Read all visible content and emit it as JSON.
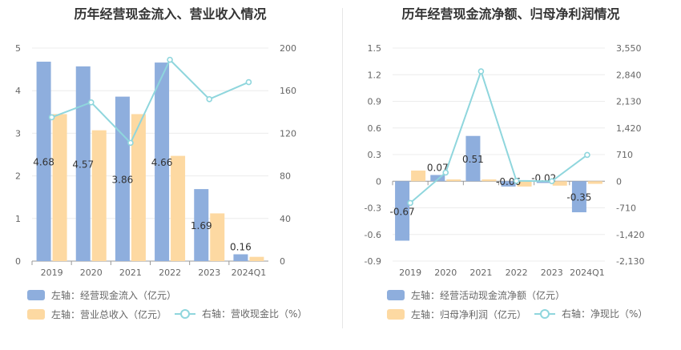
{
  "colors": {
    "bar1": "#8eaedd",
    "bar2": "#fdd9a2",
    "line": "#8fd6dd"
  },
  "chart_data": [
    {
      "type": "bar",
      "title": "历年经营现金流入、营业收入情况",
      "categories": [
        "2019",
        "2020",
        "2021",
        "2022",
        "2023",
        "2024Q1"
      ],
      "series": [
        {
          "name": "左轴：经营现金流入（亿元）",
          "axis": "left",
          "type": "bar",
          "values": [
            4.68,
            4.57,
            3.86,
            4.66,
            1.69,
            0.16
          ],
          "labels": [
            "4.68",
            "4.57",
            "3.86",
            "4.66",
            "1.69",
            "0.16"
          ]
        },
        {
          "name": "左轴：营业总收入（亿元）",
          "axis": "left",
          "type": "bar",
          "values": [
            3.45,
            3.07,
            3.45,
            2.47,
            1.12,
            0.1
          ]
        },
        {
          "name": "右轴：营收现金比（%）",
          "axis": "right",
          "type": "line",
          "values": [
            135,
            149,
            111,
            189,
            152,
            168
          ]
        }
      ],
      "y_left": {
        "range": [
          0,
          5
        ],
        "ticks": [
          "0",
          "1",
          "2",
          "3",
          "4",
          "5"
        ]
      },
      "y_right": {
        "range": [
          0,
          200
        ],
        "ticks": [
          "0",
          "40",
          "80",
          "120",
          "160",
          "200"
        ]
      },
      "grid": true,
      "legend_position": "bottom-left"
    },
    {
      "type": "bar",
      "title": "历年经营现金流净额、归母净利润情况",
      "categories": [
        "2019",
        "2020",
        "2021",
        "2022",
        "2023",
        "2024Q1"
      ],
      "series": [
        {
          "name": "左轴：经营活动现金流净额（亿元）",
          "axis": "left",
          "type": "bar",
          "values": [
            -0.67,
            0.07,
            0.51,
            -0.06,
            -0.02,
            -0.35
          ],
          "labels": [
            "-0.67",
            "0.07",
            "0.51",
            "-0.06",
            "-0.02",
            "-0.35"
          ]
        },
        {
          "name": "左轴：归母净利润（亿元）",
          "axis": "left",
          "type": "bar",
          "values": [
            0.12,
            0.02,
            0.02,
            -0.06,
            -0.05,
            -0.03
          ]
        },
        {
          "name": "右轴：净现比（%）",
          "axis": "right",
          "type": "line",
          "values": [
            -580,
            230,
            2930,
            10,
            0,
            700
          ]
        }
      ],
      "y_left": {
        "range": [
          -0.9,
          1.5
        ],
        "ticks": [
          "-0.9",
          "-0.6",
          "-0.3",
          "0",
          "0.3",
          "0.6",
          "0.9",
          "1.2",
          "1.5"
        ]
      },
      "y_right": {
        "range": [
          -2130,
          3550
        ],
        "ticks": [
          "-2,130",
          "-1,420",
          "-710",
          "0",
          "710",
          "1,420",
          "2,130",
          "2,840",
          "3,550"
        ]
      },
      "grid": true,
      "legend_position": "bottom-left"
    }
  ]
}
